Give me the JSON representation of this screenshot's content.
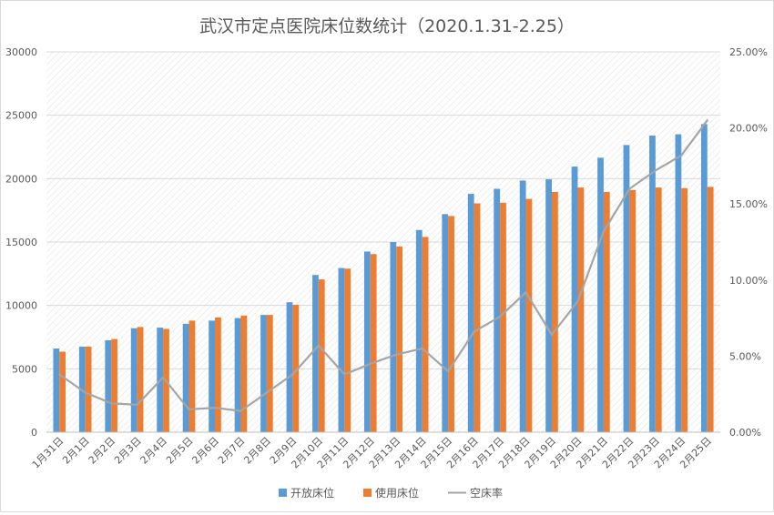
{
  "chart_data": {
    "type": "bar",
    "title": "武汉市定点医院床位数统计（2020.1.31-2.25）",
    "categories": [
      "1月31日",
      "2月1日",
      "2月2日",
      "2月3日",
      "2月4日",
      "2月5日",
      "2月6日",
      "2月7日",
      "2月8日",
      "2月9日",
      "2月10日",
      "2月11日",
      "2月12日",
      "2月13日",
      "2月14日",
      "2月15日",
      "2月16日",
      "2月17日",
      "2月18日",
      "2月19日",
      "2月20日",
      "2月21日",
      "2月22日",
      "2月23日",
      "2月24日",
      "2月25日"
    ],
    "series": [
      {
        "name": "开放床位",
        "type": "bar",
        "axis": "left",
        "color": "#5b9bd5",
        "values": [
          6600,
          6750,
          7250,
          8200,
          8250,
          8550,
          8800,
          9000,
          9250,
          10250,
          12400,
          12950,
          14250,
          15000,
          15950,
          17200,
          18800,
          19200,
          19850,
          19950,
          20950,
          21650,
          22650,
          23400,
          23500,
          24300
        ]
      },
      {
        "name": "使用床位",
        "type": "bar",
        "axis": "left",
        "color": "#ed7d31",
        "values": [
          6350,
          6750,
          7350,
          8300,
          8150,
          8800,
          9050,
          9200,
          9250,
          10050,
          12050,
          12900,
          14050,
          14650,
          15400,
          17050,
          18050,
          18100,
          18400,
          18950,
          19300,
          18950,
          19100,
          19300,
          19250,
          19350
        ]
      },
      {
        "name": "空床率",
        "type": "line",
        "axis": "right",
        "color": "#a5a5a5",
        "values": [
          3.8,
          2.6,
          1.9,
          1.8,
          3.6,
          1.5,
          1.6,
          1.4,
          2.6,
          3.8,
          5.7,
          3.8,
          4.5,
          5.1,
          5.5,
          4.0,
          6.6,
          7.6,
          9.2,
          6.4,
          8.6,
          13.2,
          16.0,
          17.2,
          18.2,
          20.5
        ]
      }
    ],
    "y_left": {
      "min": 0,
      "max": 30000,
      "ticks": [
        "0",
        "5000",
        "10000",
        "15000",
        "20000",
        "25000",
        "30000"
      ]
    },
    "y_right": {
      "min": 0,
      "max": 25,
      "ticks": [
        "0.00%",
        "5.00%",
        "10.00%",
        "15.00%",
        "20.00%",
        "25.00%"
      ]
    },
    "grid": true,
    "legend_position": "bottom"
  }
}
